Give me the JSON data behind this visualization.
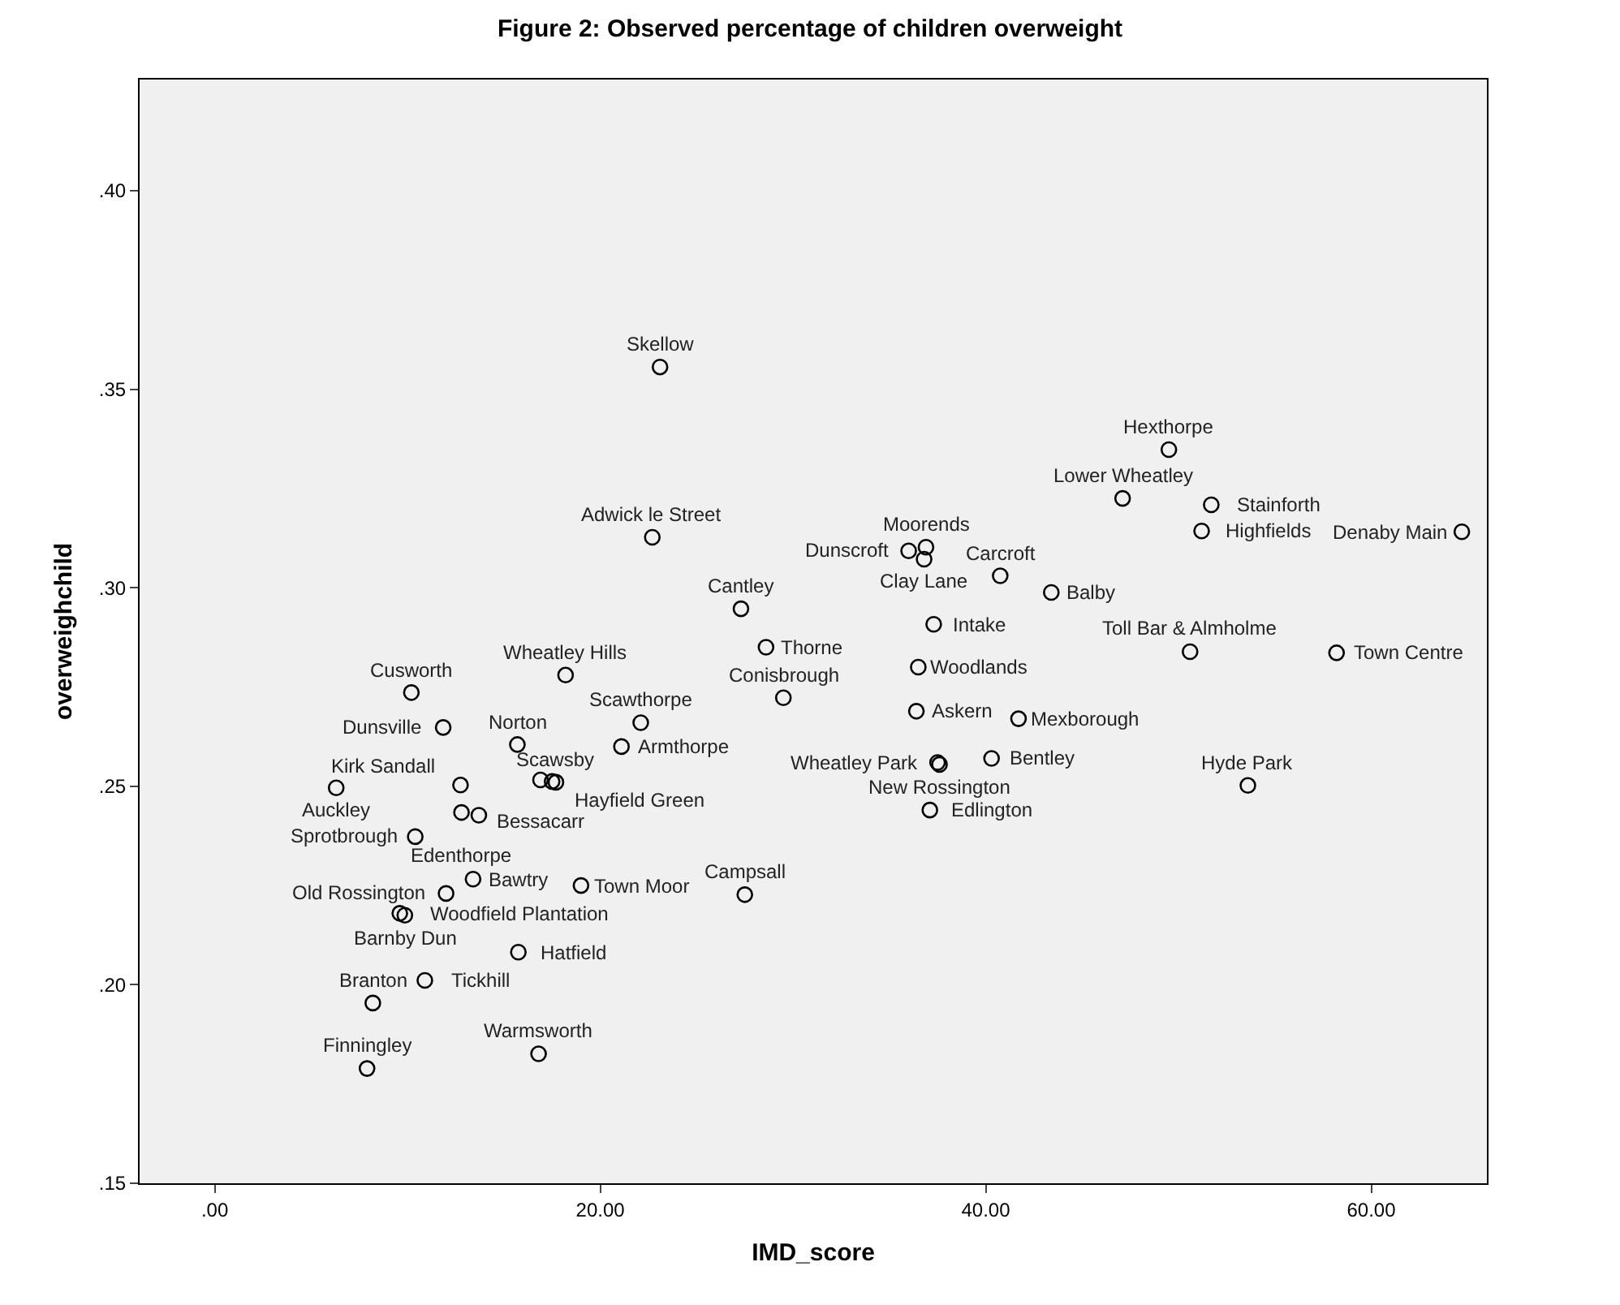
{
  "chart_data": {
    "type": "scatter",
    "title": "Figure 2: Observed percentage of children overweight",
    "xlabel": "IMD_score",
    "ylabel": "overweighchild",
    "xlim": [
      -3.9,
      66
    ],
    "ylim": [
      0.15,
      0.428
    ],
    "xticks": [
      {
        "value": 0,
        "label": ".00"
      },
      {
        "value": 20,
        "label": "20.00"
      },
      {
        "value": 40,
        "label": "40.00"
      },
      {
        "value": 60,
        "label": "60.00"
      }
    ],
    "yticks": [
      {
        "value": 0.15,
        "label": ".15"
      },
      {
        "value": 0.2,
        "label": ".20"
      },
      {
        "value": 0.25,
        "label": ".25"
      },
      {
        "value": 0.3,
        "label": ".30"
      },
      {
        "value": 0.35,
        "label": ".35"
      },
      {
        "value": 0.4,
        "label": ".40"
      }
    ],
    "grid": false,
    "marker": "circle",
    "color": "#000000",
    "x": [
      23.1,
      49.5,
      47.1,
      51.7,
      64.7,
      22.7,
      36.9,
      36.0,
      51.2,
      40.75,
      36.8,
      27.3,
      43.4,
      28.6,
      37.3,
      50.6,
      58.2,
      10.2,
      18.2,
      22.1,
      36.5,
      36.4,
      29.5,
      11.85,
      15.7,
      21.1,
      41.7,
      12.75,
      17.5,
      37.5,
      40.3,
      53.6,
      6.3,
      12.8,
      16.9,
      17.7,
      37.6,
      37.1,
      10.4,
      13.4,
      19.0,
      12.0,
      27.5,
      9.86,
      9.6,
      8.2,
      10.9,
      15.75,
      7.9,
      16.8,
      13.7
    ],
    "values": [
      0.3556,
      0.3348,
      0.3225,
      0.3209,
      0.3141,
      0.3127,
      0.3102,
      0.3093,
      0.3143,
      0.303,
      0.3072,
      0.2947,
      0.2988,
      0.285,
      0.2908,
      0.2839,
      0.2836,
      0.2736,
      0.278,
      0.266,
      0.28,
      0.2689,
      0.2723,
      0.2648,
      0.2605,
      0.26,
      0.267,
      0.2503,
      0.2512,
      0.256,
      0.257,
      0.2502,
      0.2496,
      0.2434,
      0.2516,
      0.251,
      0.2555,
      0.244,
      0.2373,
      0.2266,
      0.225,
      0.223,
      0.2227,
      0.2175,
      0.218,
      0.1954,
      0.2011,
      0.2082,
      0.1789,
      0.1826,
      0.2427
    ],
    "annotations": [
      {
        "text": "Skellow",
        "x": 23.1,
        "y": 0.3556
      },
      {
        "text": "Hexthorpe",
        "x": 49.5,
        "y": 0.3348
      },
      {
        "text": "Lower Wheatley",
        "x": 47.1,
        "y": 0.3225
      },
      {
        "text": "Stainforth",
        "x": 51.7,
        "y": 0.3209
      },
      {
        "text": "Denaby Main",
        "x": 64.7,
        "y": 0.3141
      },
      {
        "text": "Adwick le Street",
        "x": 22.7,
        "y": 0.3127
      },
      {
        "text": "Moorends",
        "x": 36.9,
        "y": 0.3102
      },
      {
        "text": "Dunscroft",
        "x": 36.0,
        "y": 0.3093
      },
      {
        "text": "Highfields",
        "x": 51.2,
        "y": 0.3143
      },
      {
        "text": "Carcroft",
        "x": 40.75,
        "y": 0.303
      },
      {
        "text": "Clay Lane",
        "x": 36.8,
        "y": 0.3072
      },
      {
        "text": "Cantley",
        "x": 27.3,
        "y": 0.2947
      },
      {
        "text": "Balby",
        "x": 43.4,
        "y": 0.2988
      },
      {
        "text": "Thorne",
        "x": 28.6,
        "y": 0.285
      },
      {
        "text": "Intake",
        "x": 37.3,
        "y": 0.2908
      },
      {
        "text": "Toll Bar & Almholme",
        "x": 50.6,
        "y": 0.2839
      },
      {
        "text": "Town Centre",
        "x": 58.2,
        "y": 0.2836
      },
      {
        "text": "Cusworth",
        "x": 10.2,
        "y": 0.2736
      },
      {
        "text": "Wheatley Hills",
        "x": 18.2,
        "y": 0.278
      },
      {
        "text": "Scawthorpe",
        "x": 22.1,
        "y": 0.266
      },
      {
        "text": "Woodlands",
        "x": 36.5,
        "y": 0.28
      },
      {
        "text": "Askern",
        "x": 36.4,
        "y": 0.2689
      },
      {
        "text": "Conisbrough",
        "x": 29.5,
        "y": 0.2723
      },
      {
        "text": "Dunsville",
        "x": 11.85,
        "y": 0.2648
      },
      {
        "text": "Norton",
        "x": 15.7,
        "y": 0.2605
      },
      {
        "text": "Armthorpe",
        "x": 21.1,
        "y": 0.26
      },
      {
        "text": "Mexborough",
        "x": 41.7,
        "y": 0.267
      },
      {
        "text": "Kirk Sandall",
        "x": 12.75,
        "y": 0.2503
      },
      {
        "text": "Hayfield Green",
        "x": 17.5,
        "y": 0.2512
      },
      {
        "text": "Wheatley Park",
        "x": 37.5,
        "y": 0.256
      },
      {
        "text": "Bentley",
        "x": 40.3,
        "y": 0.257
      },
      {
        "text": "Hyde Park",
        "x": 53.6,
        "y": 0.2502
      },
      {
        "text": "Auckley",
        "x": 6.3,
        "y": 0.2496
      },
      {
        "text": "Edenthorpe",
        "x": 12.8,
        "y": 0.2434
      },
      {
        "text": "Bessacarr",
        "x": 16.9,
        "y": 0.2516
      },
      {
        "text": "Scawsby",
        "x": 17.7,
        "y": 0.251
      },
      {
        "text": "New Rossington",
        "x": 37.6,
        "y": 0.2555
      },
      {
        "text": "Edlington",
        "x": 37.1,
        "y": 0.244
      },
      {
        "text": "Sprotbrough",
        "x": 10.4,
        "y": 0.2373
      },
      {
        "text": "Bawtry",
        "x": 13.4,
        "y": 0.2266
      },
      {
        "text": "Town Moor",
        "x": 19.0,
        "y": 0.225
      },
      {
        "text": "Old Rossington",
        "x": 12.0,
        "y": 0.223
      },
      {
        "text": "Campsall",
        "x": 27.5,
        "y": 0.2227
      },
      {
        "text": "Barnby Dun",
        "x": 9.86,
        "y": 0.2175
      },
      {
        "text": "Woodfield Plantation",
        "x": 9.6,
        "y": 0.218
      },
      {
        "text": "Branton",
        "x": 8.2,
        "y": 0.1954
      },
      {
        "text": "Tickhill",
        "x": 10.9,
        "y": 0.2011
      },
      {
        "text": "Hatfield",
        "x": 15.75,
        "y": 0.2082
      },
      {
        "text": "Finningley",
        "x": 7.9,
        "y": 0.1789
      },
      {
        "text": "Warmsworth",
        "x": 16.8,
        "y": 0.1826
      }
    ]
  }
}
